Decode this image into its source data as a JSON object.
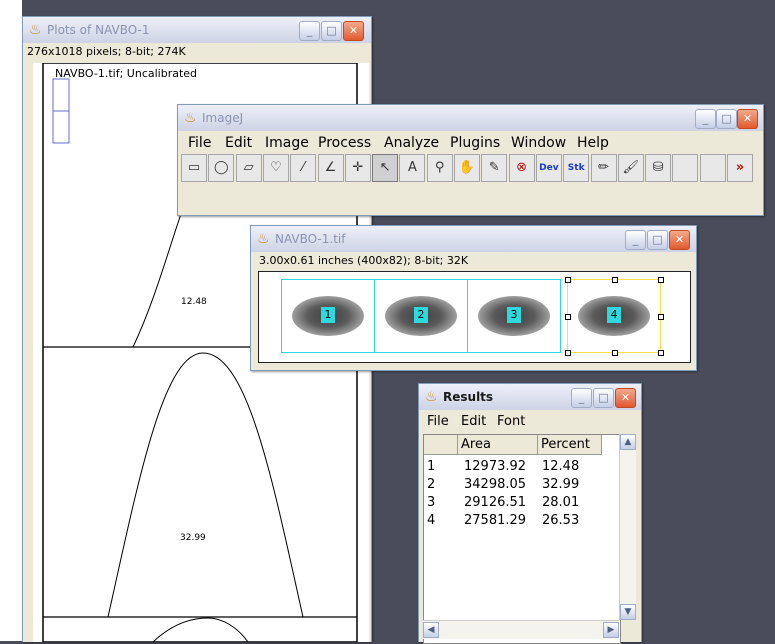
{
  "plots_window": {
    "title": "Plots of NAVBO-1",
    "info": "276x1018 pixels; 8-bit; 274K",
    "canvas_label": "NAVBO-1.tif; Uncalibrated",
    "peak_labels": [
      "12.48",
      "32.99"
    ]
  },
  "imagej_window": {
    "title": "ImageJ",
    "menu": [
      "File",
      "Edit",
      "Image",
      "Process",
      "Analyze",
      "Plugins",
      "Window",
      "Help"
    ],
    "tools": [
      {
        "name": "rectangle-tool-icon",
        "glyph": "▭"
      },
      {
        "name": "oval-tool-icon",
        "glyph": "◯"
      },
      {
        "name": "polygon-tool-icon",
        "glyph": "▱"
      },
      {
        "name": "freehand-tool-icon",
        "glyph": "♡"
      },
      {
        "name": "line-tool-icon",
        "glyph": "⁄"
      },
      {
        "name": "angle-tool-icon",
        "glyph": "∠"
      },
      {
        "name": "point-tool-icon",
        "glyph": "✛"
      },
      {
        "name": "wand-tool-icon",
        "glyph": "↖"
      },
      {
        "name": "text-tool-icon",
        "glyph": "A"
      },
      {
        "name": "magnifier-tool-icon",
        "glyph": "⚲"
      },
      {
        "name": "scroll-tool-icon",
        "glyph": "✋"
      },
      {
        "name": "color-picker-tool-icon",
        "glyph": "✎"
      },
      {
        "name": "cancel-tool-icon",
        "glyph": "⊗"
      },
      {
        "name": "dev-tool-icon",
        "glyph": "Dev"
      },
      {
        "name": "stk-tool-icon",
        "glyph": "Stk"
      },
      {
        "name": "pencil-tool-icon",
        "glyph": "✏"
      },
      {
        "name": "brush-tool-icon",
        "glyph": "🖌"
      },
      {
        "name": "flood-fill-tool-icon",
        "glyph": "⛁"
      },
      {
        "name": "empty-tool-slot",
        "glyph": ""
      },
      {
        "name": "empty-tool-slot",
        "glyph": ""
      },
      {
        "name": "more-tools-icon",
        "glyph": "»"
      }
    ]
  },
  "navbo_window": {
    "title": "NAVBO-1.tif",
    "info": "3.00x0.61 inches (400x82); 8-bit; 32K",
    "bands": [
      "1",
      "2",
      "3",
      "4"
    ]
  },
  "results_window": {
    "title": "Results",
    "menu": [
      "File",
      "Edit",
      "Font"
    ],
    "columns": [
      "",
      "Area",
      "Percent"
    ],
    "rows": [
      [
        "1",
        "12973.92",
        "12.48"
      ],
      [
        "2",
        "34298.05",
        "32.99"
      ],
      [
        "3",
        "29126.51",
        "28.01"
      ],
      [
        "4",
        "27581.29",
        "26.53"
      ]
    ]
  },
  "colors": {
    "desktop": "#4a4c5a",
    "selection_cyan": "#2dd9dc",
    "selection_yellow": "#f4e04d",
    "close_button": "#e15a2f"
  }
}
